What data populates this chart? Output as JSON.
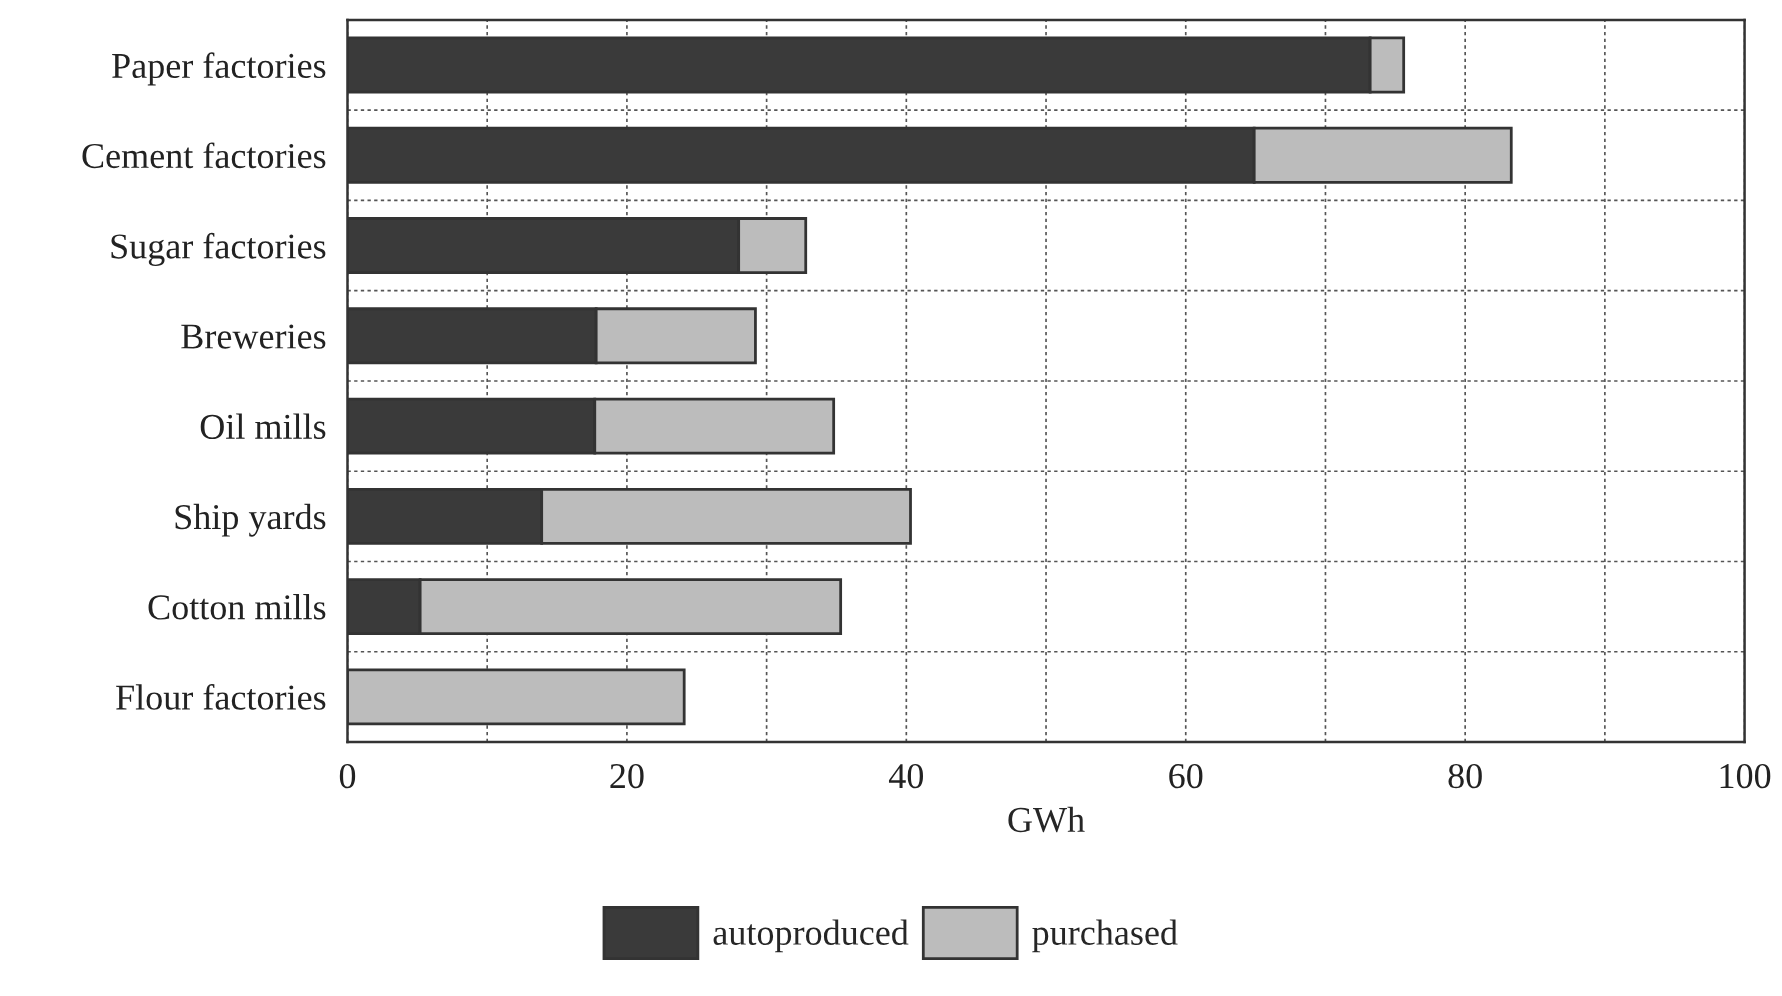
{
  "chart_data": {
    "type": "bar",
    "orientation": "horizontal",
    "stacked": true,
    "xlabel": "GWh",
    "categories": [
      "Paper factories",
      "Cement factories",
      "Sugar factories",
      "Breweries",
      "Oil mills",
      "Ship yards",
      "Cotton mills",
      "Flour factories"
    ],
    "series": [
      {
        "name": "autoproduced",
        "color": "#3a3a3a",
        "values": [
          73.2,
          64.9,
          28.0,
          17.8,
          17.7,
          13.9,
          5.2,
          null
        ]
      },
      {
        "name": "purchased",
        "color": "#bcbcbc",
        "values": [
          2.4,
          18.4,
          4.8,
          11.4,
          17.1,
          26.4,
          30.1,
          24.1
        ]
      }
    ],
    "xlim": [
      0,
      100
    ],
    "xticks": [
      0,
      {
        "value": 10,
        "label": null
      },
      20,
      {
        "value": 30,
        "label": null
      },
      40,
      {
        "value": 50,
        "label": null
      },
      60,
      {
        "value": 70,
        "label": null
      },
      80,
      {
        "value": 90,
        "label": null
      },
      100
    ],
    "grid": true,
    "legend": "bottom"
  }
}
